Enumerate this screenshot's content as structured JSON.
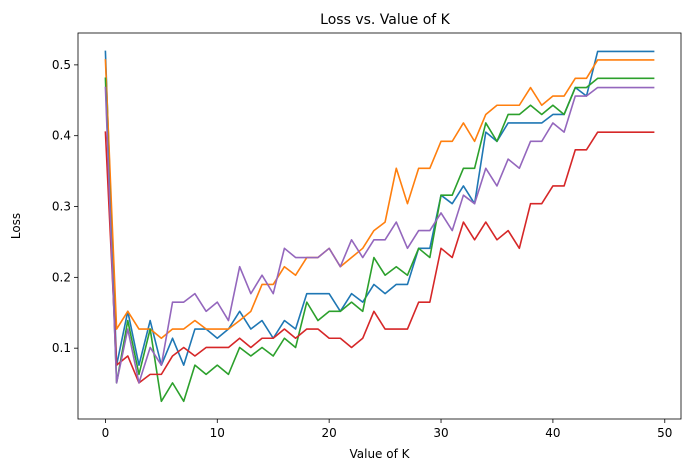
{
  "chart_data": {
    "type": "line",
    "title": "Loss vs. Value of K",
    "xlabel": "Value of K",
    "ylabel": "Loss",
    "xlim": [
      -2.45,
      51.45
    ],
    "ylim": [
      0.0,
      0.545
    ],
    "xticks": [
      0,
      10,
      20,
      30,
      40,
      50
    ],
    "yticks": [
      0.1,
      0.2,
      0.3,
      0.4,
      0.5
    ],
    "grid": false,
    "x": [
      0,
      1,
      2,
      3,
      4,
      5,
      6,
      7,
      8,
      9,
      10,
      11,
      12,
      13,
      14,
      15,
      16,
      17,
      18,
      19,
      20,
      21,
      22,
      23,
      24,
      25,
      26,
      27,
      28,
      29,
      30,
      31,
      32,
      33,
      34,
      35,
      36,
      37,
      38,
      39,
      40,
      41,
      42,
      43,
      44,
      45,
      46,
      47,
      48,
      49
    ],
    "series": [
      {
        "color": "#1f77b4",
        "values": [
          0.519,
          0.076,
          0.152,
          0.076,
          0.139,
          0.076,
          0.114,
          0.076,
          0.127,
          0.127,
          0.114,
          0.127,
          0.152,
          0.127,
          0.139,
          0.114,
          0.139,
          0.127,
          0.177,
          0.177,
          0.177,
          0.152,
          0.177,
          0.165,
          0.19,
          0.177,
          0.19,
          0.19,
          0.241,
          0.241,
          0.316,
          0.304,
          0.329,
          0.304,
          0.405,
          0.392,
          0.418,
          0.418,
          0.418,
          0.418,
          0.43,
          0.43,
          0.468,
          0.456,
          0.519,
          0.519,
          0.519,
          0.519,
          0.519,
          0.519
        ]
      },
      {
        "color": "#ff7f0e",
        "values": [
          0.507,
          0.127,
          0.152,
          0.127,
          0.127,
          0.114,
          0.127,
          0.127,
          0.139,
          0.127,
          0.127,
          0.127,
          0.139,
          0.152,
          0.19,
          0.19,
          0.215,
          0.203,
          0.228,
          0.228,
          0.241,
          0.215,
          0.228,
          0.241,
          0.266,
          0.278,
          0.354,
          0.304,
          0.354,
          0.354,
          0.392,
          0.392,
          0.418,
          0.392,
          0.43,
          0.443,
          0.443,
          0.443,
          0.468,
          0.443,
          0.456,
          0.456,
          0.481,
          0.481,
          0.507,
          0.507,
          0.507,
          0.507,
          0.507,
          0.507
        ]
      },
      {
        "color": "#2ca02c",
        "values": [
          0.481,
          0.051,
          0.139,
          0.063,
          0.127,
          0.025,
          0.051,
          0.025,
          0.076,
          0.063,
          0.076,
          0.063,
          0.101,
          0.089,
          0.101,
          0.089,
          0.114,
          0.101,
          0.165,
          0.139,
          0.152,
          0.152,
          0.165,
          0.152,
          0.228,
          0.203,
          0.215,
          0.203,
          0.241,
          0.228,
          0.316,
          0.316,
          0.354,
          0.354,
          0.418,
          0.392,
          0.43,
          0.43,
          0.443,
          0.43,
          0.443,
          0.43,
          0.468,
          0.468,
          0.481,
          0.481,
          0.481,
          0.481,
          0.481,
          0.481
        ]
      },
      {
        "color": "#d62728",
        "values": [
          0.405,
          0.076,
          0.089,
          0.051,
          0.063,
          0.063,
          0.089,
          0.101,
          0.089,
          0.101,
          0.101,
          0.101,
          0.114,
          0.101,
          0.114,
          0.114,
          0.127,
          0.114,
          0.127,
          0.127,
          0.114,
          0.114,
          0.101,
          0.114,
          0.152,
          0.127,
          0.127,
          0.127,
          0.165,
          0.165,
          0.241,
          0.228,
          0.278,
          0.253,
          0.278,
          0.253,
          0.266,
          0.241,
          0.304,
          0.304,
          0.329,
          0.329,
          0.38,
          0.38,
          0.405,
          0.405,
          0.405,
          0.405,
          0.405,
          0.405
        ]
      },
      {
        "color": "#9467bd",
        "values": [
          0.468,
          0.051,
          0.127,
          0.051,
          0.101,
          0.076,
          0.165,
          0.165,
          0.177,
          0.152,
          0.165,
          0.139,
          0.215,
          0.177,
          0.203,
          0.177,
          0.241,
          0.228,
          0.228,
          0.228,
          0.241,
          0.215,
          0.253,
          0.228,
          0.253,
          0.253,
          0.278,
          0.241,
          0.266,
          0.266,
          0.291,
          0.266,
          0.316,
          0.304,
          0.354,
          0.329,
          0.367,
          0.354,
          0.392,
          0.392,
          0.418,
          0.405,
          0.456,
          0.456,
          0.468,
          0.468,
          0.468,
          0.468,
          0.468,
          0.468
        ]
      }
    ]
  }
}
